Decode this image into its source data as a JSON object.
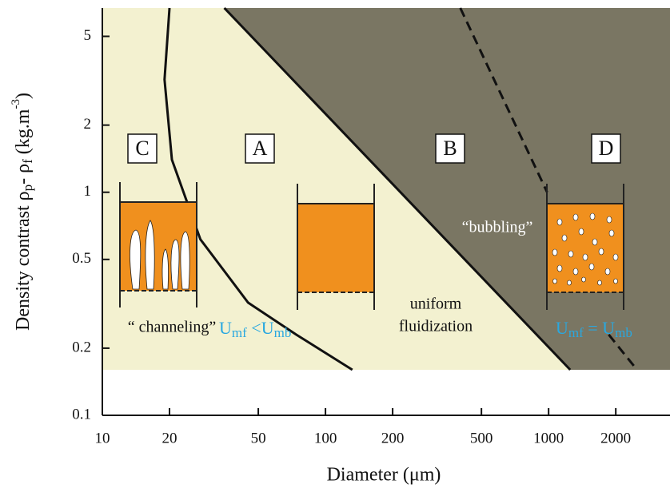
{
  "chart_data": {
    "type": "regions",
    "x_label": "Diameter (μm)",
    "y_label_parts": [
      "Density contrast  ρ",
      "p",
      "- ρ",
      "f",
      " (kg.m",
      "-3",
      ")"
    ],
    "xscale": "log",
    "yscale": "log",
    "xlim": [
      10,
      3500
    ],
    "ylim": [
      0.1,
      6.7
    ],
    "xticks": [
      10,
      20,
      50,
      100,
      200,
      500,
      1000,
      2000
    ],
    "yticks": [
      0.1,
      0.2,
      0.5,
      1,
      2,
      5
    ],
    "region_colors": [
      "#f3f1d0",
      "#7a7663"
    ],
    "boundaries": [
      {
        "x": [
          20,
          19,
          20.5,
          27.5,
          45,
          74,
          132
        ],
        "y": [
          6.7,
          3.2,
          1.4,
          0.615,
          0.32,
          0.23,
          0.16
        ],
        "style": "solid",
        "color": "#111111"
      },
      {
        "x": [
          35.2,
          1250
        ],
        "y": [
          6.7,
          0.16
        ],
        "style": "solid",
        "color": "#111111"
      },
      {
        "x": [
          402,
          985,
          null,
          1860,
          2490
        ],
        "y": [
          6.7,
          1.0,
          null,
          0.23,
          0.16
        ],
        "style": "dashed",
        "color": "#111111"
      }
    ],
    "groups": [
      "C",
      "A",
      "B",
      "D"
    ],
    "annotations": {
      "channeling": "“ channeling”",
      "uniform": [
        "uniform",
        "fluidization"
      ],
      "bubbling": "“bubbling”",
      "condition_A": [
        "U",
        "mf",
        " <",
        "U",
        "mb"
      ],
      "condition_D": [
        "U",
        "mf",
        " = ",
        "U",
        "mb"
      ]
    },
    "annotation_color": "#29a8e0"
  }
}
